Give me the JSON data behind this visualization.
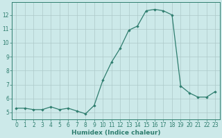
{
  "x": [
    0,
    1,
    2,
    3,
    4,
    5,
    6,
    7,
    8,
    9,
    10,
    11,
    12,
    13,
    14,
    15,
    16,
    17,
    18,
    19,
    20,
    21,
    22,
    23
  ],
  "y": [
    5.3,
    5.3,
    5.2,
    5.2,
    5.4,
    5.2,
    5.3,
    5.1,
    4.9,
    5.5,
    7.3,
    8.6,
    9.6,
    10.9,
    11.2,
    12.3,
    12.4,
    12.3,
    12.0,
    6.9,
    6.4,
    6.1,
    6.1,
    6.5
  ],
  "line_color": "#2e7d6e",
  "marker": "D",
  "marker_size": 1.8,
  "bg_color": "#cce9e9",
  "grid_color": "#adc8c8",
  "xlabel": "Humidex (Indice chaleur)",
  "xlim": [
    -0.5,
    23.5
  ],
  "ylim": [
    4.5,
    12.9
  ],
  "yticks": [
    5,
    6,
    7,
    8,
    9,
    10,
    11,
    12
  ],
  "xticks": [
    0,
    1,
    2,
    3,
    4,
    5,
    6,
    7,
    8,
    9,
    10,
    11,
    12,
    13,
    14,
    15,
    16,
    17,
    18,
    19,
    20,
    21,
    22,
    23
  ],
  "tick_color": "#2e7d6e",
  "label_fontsize": 6.5,
  "tick_fontsize": 5.5,
  "spine_color": "#2e7d6e",
  "linewidth": 0.9
}
